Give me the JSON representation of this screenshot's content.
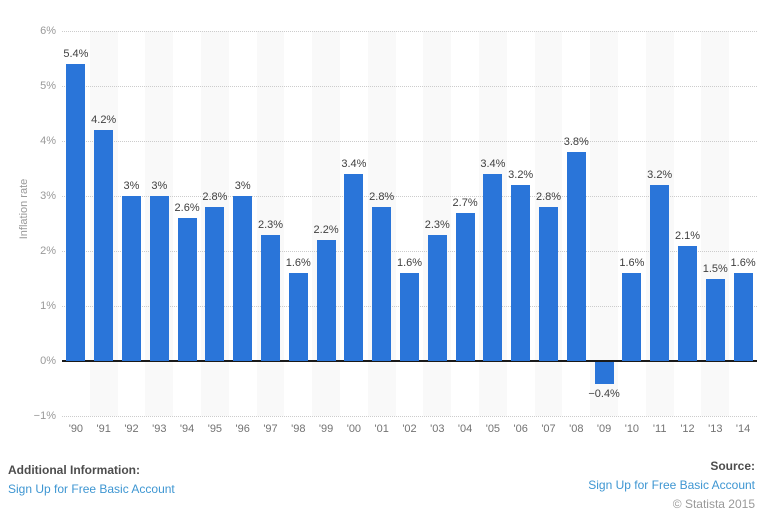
{
  "chart_data": {
    "type": "bar",
    "title": "",
    "xlabel": "",
    "ylabel": "Inflation rate",
    "categories": [
      "'90",
      "'91",
      "'92",
      "'93",
      "'94",
      "'95",
      "'96",
      "'97",
      "'98",
      "'99",
      "'00",
      "'01",
      "'02",
      "'03",
      "'04",
      "'05",
      "'06",
      "'07",
      "'08",
      "'09",
      "'10",
      "'11",
      "'12",
      "'13",
      "'14"
    ],
    "values": [
      5.4,
      4.2,
      3,
      3,
      2.6,
      2.8,
      3,
      2.3,
      1.6,
      2.2,
      3.4,
      2.8,
      1.6,
      2.3,
      2.7,
      3.4,
      3.2,
      2.8,
      3.8,
      -0.4,
      1.6,
      3.2,
      2.1,
      1.5,
      1.6
    ],
    "value_labels": [
      "5.4%",
      "4.2%",
      "3%",
      "3%",
      "2.6%",
      "2.8%",
      "3%",
      "2.3%",
      "1.6%",
      "2.2%",
      "3.4%",
      "2.8%",
      "1.6%",
      "2.3%",
      "2.7%",
      "3.4%",
      "3.2%",
      "2.8%",
      "3.8%",
      "−0.4%",
      "1.6%",
      "3.2%",
      "2.1%",
      "1.5%",
      "1.6%"
    ],
    "ylim": [
      -1,
      6
    ],
    "ytick_values": [
      6,
      5,
      4,
      3,
      2,
      1,
      0,
      -1
    ],
    "ytick_labels": [
      "6%",
      "5%",
      "4%",
      "3%",
      "2%",
      "1%",
      "0%",
      "−1%"
    ],
    "grid": "horizontal-dotted",
    "legend": "none",
    "bar_color": "#2a75d9",
    "stripe_color": "#f9f9f9"
  },
  "footer": {
    "additional_info_label": "Additional Information:",
    "additional_info_link": "Sign Up for Free Basic Account",
    "source_label": "Source:",
    "source_link": "Sign Up for Free Basic Account",
    "copyright": "© Statista 2015"
  },
  "colors": {
    "bar": "#2a75d9",
    "link": "#3e96d2",
    "grid": "#cccccc",
    "zero_axis": "#1a1a1a"
  }
}
